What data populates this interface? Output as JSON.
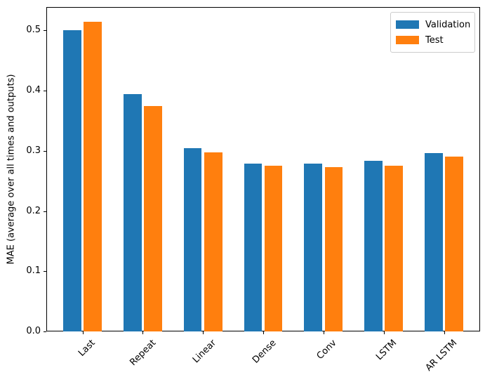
{
  "chart_data": {
    "type": "bar",
    "title": "",
    "xlabel": "",
    "ylabel": "MAE (average over all times and outputs)",
    "categories": [
      "Last",
      "Repeat",
      "Linear",
      "Dense",
      "Conv",
      "LSTM",
      "AR LSTM"
    ],
    "series": [
      {
        "name": "Validation",
        "color": "#1f77b4",
        "values": [
          0.501,
          0.394,
          0.304,
          0.279,
          0.279,
          0.284,
          0.296
        ]
      },
      {
        "name": "Test",
        "color": "#ff7f0e",
        "values": [
          0.514,
          0.375,
          0.298,
          0.275,
          0.273,
          0.275,
          0.29
        ]
      }
    ],
    "ylim": [
      0,
      0.539
    ],
    "xlim": [
      -0.6,
      6.6
    ],
    "yticks": [
      {
        "value": 0.0,
        "label": "0.0"
      },
      {
        "value": 0.1,
        "label": "0.1"
      },
      {
        "value": 0.2,
        "label": "0.2"
      },
      {
        "value": 0.3,
        "label": "0.3"
      },
      {
        "value": 0.4,
        "label": "0.4"
      },
      {
        "value": 0.5,
        "label": "0.5"
      }
    ],
    "bar_width": 0.3,
    "bar_offsets": [
      -0.17,
      0.17
    ],
    "xtick_rotation": 45,
    "grid": false,
    "legend_position": "upper right"
  }
}
